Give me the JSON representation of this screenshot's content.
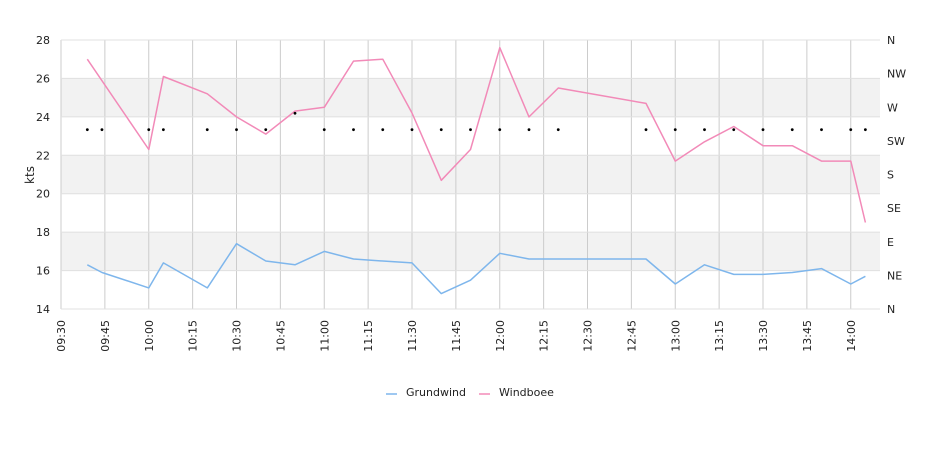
{
  "chart_data": {
    "type": "line",
    "ylabel": "kts",
    "ylim": [
      14,
      28
    ],
    "y_ticks": [
      "14",
      "16",
      "18",
      "20",
      "22",
      "24",
      "26",
      "28"
    ],
    "x_range": [
      "09:30",
      "14:10"
    ],
    "x_ticks": [
      "09:30",
      "09:45",
      "10:00",
      "10:15",
      "10:30",
      "10:45",
      "11:00",
      "11:15",
      "11:30",
      "11:45",
      "12:00",
      "12:15",
      "12:30",
      "12:45",
      "13:00",
      "13:15",
      "13:30",
      "13:45",
      "14:00"
    ],
    "direction_axis": {
      "labels": [
        "N",
        "NE",
        "E",
        "SE",
        "S",
        "SW",
        "W",
        "NW",
        "N"
      ],
      "range_deg": [
        0,
        360
      ]
    },
    "grid": true,
    "legend_position": "bottom",
    "series": [
      {
        "name": "Grundwind",
        "color": "#7eb6ec",
        "points": [
          [
            "09:39",
            16.3
          ],
          [
            "09:44",
            15.9
          ],
          [
            "10:00",
            15.1
          ],
          [
            "10:05",
            16.4
          ],
          [
            "10:20",
            15.1
          ],
          [
            "10:30",
            17.4
          ],
          [
            "10:40",
            16.5
          ],
          [
            "10:50",
            16.3
          ],
          [
            "11:00",
            17.0
          ],
          [
            "11:10",
            16.6
          ],
          [
            "11:20",
            16.5
          ],
          [
            "11:30",
            16.4
          ],
          [
            "11:40",
            14.8
          ],
          [
            "11:50",
            15.5
          ],
          [
            "12:00",
            16.9
          ],
          [
            "12:10",
            16.6
          ],
          [
            "12:20",
            16.6
          ],
          [
            "12:50",
            16.6
          ],
          [
            "13:00",
            15.3
          ],
          [
            "13:10",
            16.3
          ],
          [
            "13:20",
            15.8
          ],
          [
            "13:30",
            15.8
          ],
          [
            "13:40",
            15.9
          ],
          [
            "13:50",
            16.1
          ],
          [
            "14:00",
            15.3
          ],
          [
            "14:05",
            15.7
          ]
        ]
      },
      {
        "name": "Windboee",
        "color": "#f28ab8",
        "points": [
          [
            "09:39",
            27.0
          ],
          [
            "10:00",
            22.3
          ],
          [
            "10:05",
            26.1
          ],
          [
            "10:20",
            25.2
          ],
          [
            "10:30",
            24.0
          ],
          [
            "10:40",
            23.1
          ],
          [
            "10:50",
            24.3
          ],
          [
            "11:00",
            24.5
          ],
          [
            "11:10",
            26.9
          ],
          [
            "11:20",
            27.0
          ],
          [
            "11:30",
            24.2
          ],
          [
            "11:40",
            20.7
          ],
          [
            "11:50",
            22.3
          ],
          [
            "12:00",
            27.6
          ],
          [
            "12:10",
            24.0
          ],
          [
            "12:20",
            25.5
          ],
          [
            "12:50",
            24.7
          ],
          [
            "13:00",
            21.7
          ],
          [
            "13:10",
            22.7
          ],
          [
            "13:20",
            23.5
          ],
          [
            "13:30",
            22.5
          ],
          [
            "13:40",
            22.5
          ],
          [
            "13:50",
            21.7
          ],
          [
            "14:00",
            21.7
          ],
          [
            "14:05",
            18.5
          ]
        ]
      },
      {
        "name": "direction",
        "color": "#000000",
        "type": "scatter",
        "points": [
          [
            "09:39",
            240
          ],
          [
            "09:44",
            240
          ],
          [
            "10:00",
            240
          ],
          [
            "10:05",
            240
          ],
          [
            "10:20",
            240
          ],
          [
            "10:30",
            240
          ],
          [
            "10:40",
            240
          ],
          [
            "10:50",
            262
          ],
          [
            "11:00",
            240
          ],
          [
            "11:10",
            240
          ],
          [
            "11:20",
            240
          ],
          [
            "11:30",
            240
          ],
          [
            "11:40",
            240
          ],
          [
            "11:50",
            240
          ],
          [
            "12:00",
            240
          ],
          [
            "12:10",
            240
          ],
          [
            "12:20",
            240
          ],
          [
            "12:50",
            240
          ],
          [
            "13:00",
            240
          ],
          [
            "13:10",
            240
          ],
          [
            "13:20",
            240
          ],
          [
            "13:30",
            240
          ],
          [
            "13:40",
            240
          ],
          [
            "13:50",
            240
          ],
          [
            "14:00",
            240
          ],
          [
            "14:05",
            240
          ]
        ]
      }
    ]
  }
}
